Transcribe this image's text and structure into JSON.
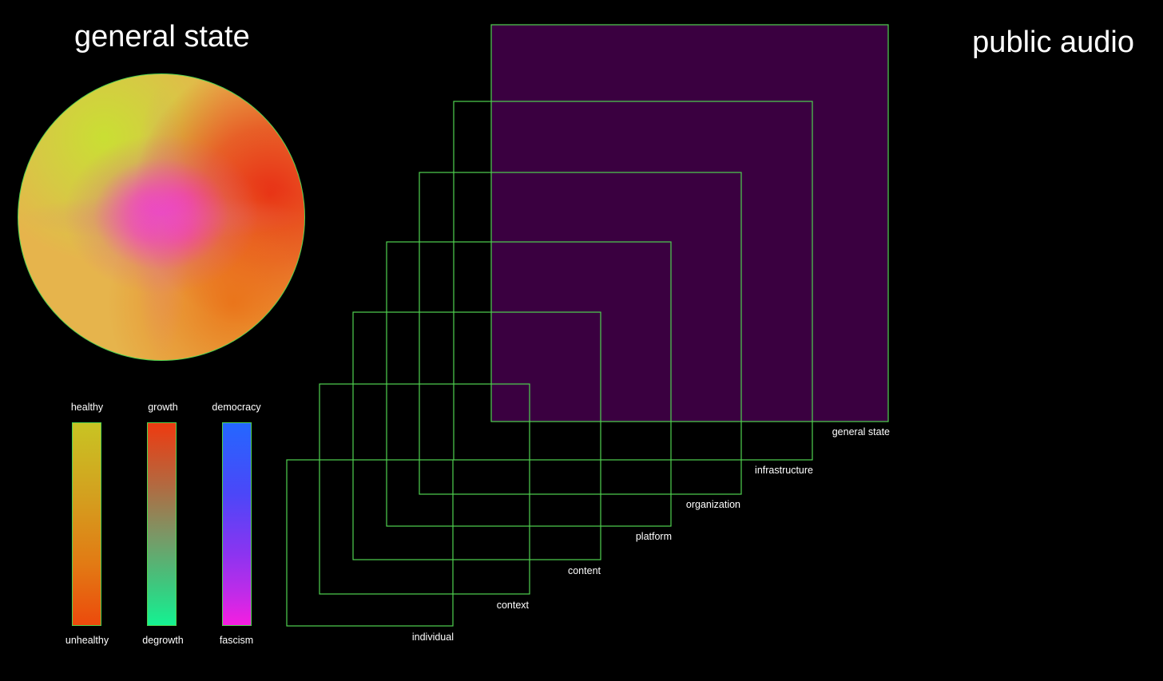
{
  "titles": {
    "left": "general state",
    "right": "public audio"
  },
  "orb": {
    "colors": {
      "yellow": "#c8e032",
      "red": "#e82812",
      "magenta": "#f528f0",
      "base": "#e6b44c",
      "outline": "#4fd14f"
    }
  },
  "scales": [
    {
      "top_label": "healthy",
      "bottom_label": "unhealthy",
      "colors": [
        "#c8c423",
        "#ec4a0c"
      ]
    },
    {
      "top_label": "growth",
      "bottom_label": "degrowth",
      "colors": [
        "#ee3a10",
        "#14f292"
      ]
    },
    {
      "top_label": "democracy",
      "bottom_label": "fascism",
      "colors": [
        "#2467ff",
        "#f61ee0"
      ]
    }
  ],
  "layers": [
    {
      "label": "general state",
      "filled": true
    },
    {
      "label": "infrastructure",
      "filled": false
    },
    {
      "label": "organization",
      "filled": false
    },
    {
      "label": "platform",
      "filled": false
    },
    {
      "label": "content",
      "filled": false
    },
    {
      "label": "context",
      "filled": false
    },
    {
      "label": "individual",
      "filled": false
    }
  ],
  "colors": {
    "background": "#000000",
    "outline": "#4fd14f",
    "fill": "#3a0040",
    "text": "#ffffff"
  }
}
